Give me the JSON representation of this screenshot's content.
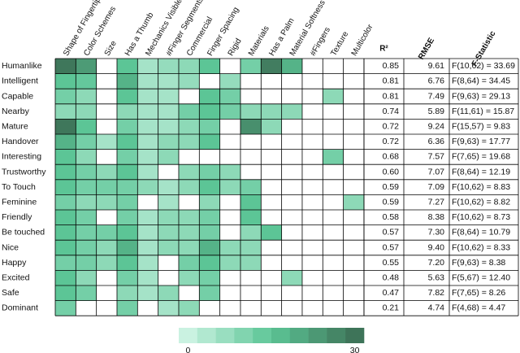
{
  "chart_data": {
    "type": "heatmap",
    "columns": [
      "Shape of Fingertip",
      "Color Schemes",
      "Size",
      "Has a Thumb",
      "Mechanics Visible",
      "#Finger Segments",
      "Commercial",
      "Finger Spacing",
      "Rigid",
      "Materials",
      "Has a Palm",
      "Material Softness",
      "#Fingers",
      "Texture",
      "Multicolor"
    ],
    "rows": [
      "Humanlike",
      "Intelligent",
      "Capable",
      "Nearby",
      "Mature",
      "Handover",
      "Interesting",
      "Trustworthy",
      "To Touch",
      "Feminine",
      "Friendly",
      "Be touched",
      "Nice",
      "Happy",
      "Excited",
      "Safe",
      "Dominant"
    ],
    "values": [
      [
        28,
        22,
        null,
        15,
        6,
        8,
        9,
        15,
        null,
        12,
        27,
        18,
        null,
        null,
        null
      ],
      [
        15,
        14,
        null,
        18,
        6,
        6,
        8,
        null,
        8,
        null,
        null,
        null,
        null,
        null,
        null
      ],
      [
        12,
        9,
        null,
        15,
        6,
        6,
        null,
        15,
        12,
        null,
        null,
        null,
        null,
        9,
        null
      ],
      [
        9,
        9,
        null,
        9,
        6,
        6,
        12,
        15,
        12,
        9,
        9,
        9,
        null,
        null,
        null
      ],
      [
        28,
        15,
        null,
        12,
        6,
        6,
        9,
        12,
        null,
        24,
        9,
        null,
        null,
        null,
        null
      ],
      [
        18,
        12,
        6,
        15,
        6,
        9,
        9,
        15,
        null,
        null,
        null,
        null,
        null,
        null,
        null
      ],
      [
        15,
        9,
        null,
        12,
        6,
        9,
        null,
        null,
        null,
        null,
        null,
        null,
        null,
        12,
        null
      ],
      [
        15,
        12,
        9,
        15,
        6,
        null,
        9,
        12,
        9,
        null,
        null,
        null,
        null,
        null,
        null
      ],
      [
        15,
        12,
        12,
        12,
        9,
        6,
        9,
        15,
        9,
        12,
        null,
        null,
        null,
        null,
        null
      ],
      [
        12,
        9,
        9,
        12,
        null,
        6,
        null,
        9,
        null,
        15,
        null,
        null,
        null,
        null,
        9
      ],
      [
        15,
        12,
        null,
        12,
        6,
        9,
        9,
        12,
        null,
        15,
        null,
        null,
        null,
        null,
        null
      ],
      [
        15,
        12,
        12,
        15,
        6,
        9,
        9,
        12,
        null,
        9,
        15,
        null,
        null,
        null,
        null
      ],
      [
        15,
        12,
        9,
        18,
        6,
        9,
        9,
        18,
        9,
        9,
        null,
        null,
        null,
        null,
        null
      ],
      [
        12,
        12,
        9,
        15,
        6,
        null,
        12,
        15,
        9,
        9,
        null,
        null,
        null,
        null,
        null
      ],
      [
        15,
        9,
        null,
        12,
        6,
        null,
        9,
        12,
        null,
        null,
        null,
        9,
        null,
        null,
        null
      ],
      [
        15,
        12,
        null,
        9,
        6,
        9,
        null,
        12,
        null,
        null,
        null,
        null,
        null,
        null,
        null
      ],
      [
        12,
        null,
        null,
        12,
        null,
        6,
        9,
        null,
        null,
        null,
        null,
        null,
        null,
        null,
        null
      ]
    ],
    "zlim": [
      0,
      30
    ],
    "zticks": [
      0,
      30
    ],
    "colors": [
      "#d6f7e9",
      "#5cc596",
      "#3b6b52"
    ],
    "table": {
      "headers": [
        "R²",
        "RMSE",
        "F-Statistic"
      ],
      "rows": [
        [
          "0.85",
          "9.61",
          "F(10,62) = 33.69"
        ],
        [
          "0.81",
          "6.76",
          "F(8,64) = 34.45"
        ],
        [
          "0.81",
          "7.49",
          "F(9,63) = 29.13"
        ],
        [
          "0.74",
          "5.89",
          "F(11,61) = 15.87"
        ],
        [
          "0.72",
          "9.24",
          "F(15,57) = 9.83"
        ],
        [
          "0.72",
          "6.36",
          "F(9,63) = 17.77"
        ],
        [
          "0.68",
          "7.57",
          "F(7,65) = 19.68"
        ],
        [
          "0.60",
          "7.07",
          "F(8,64) = 12.19"
        ],
        [
          "0.59",
          "7.09",
          "F(10,62) = 8.83"
        ],
        [
          "0.59",
          "7.27",
          "F(10,62) = 8.82"
        ],
        [
          "0.58",
          "8.38",
          "F(10,62) = 8.73"
        ],
        [
          "0.57",
          "7.30",
          "F(8,64) = 10.79"
        ],
        [
          "0.57",
          "9.40",
          "F(10,62) = 8.33"
        ],
        [
          "0.55",
          "7.20",
          "F(9,63) = 8.38"
        ],
        [
          "0.48",
          "5.63",
          "F(5,67) = 12.40"
        ],
        [
          "0.47",
          "7.82",
          "F(7,65) = 8.26"
        ],
        [
          "0.21",
          "4.74",
          "F(4,68) = 4.47"
        ]
      ]
    }
  }
}
